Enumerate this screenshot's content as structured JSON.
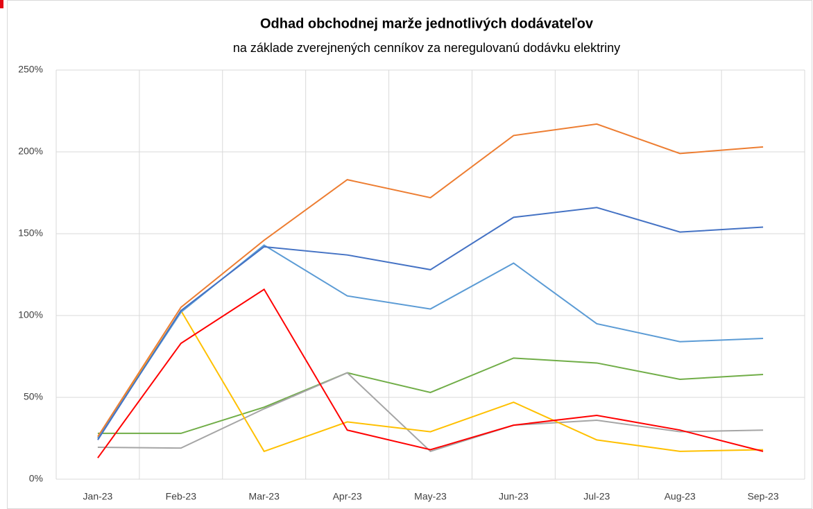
{
  "chart_data": {
    "type": "line",
    "title": "Odhad obchodnej marže jednotlivých dodávateľov",
    "subtitle": "na základe zverejnených cenníkov za neregulovanú dodávku elektriny",
    "categories": [
      "Jan-23",
      "Feb-23",
      "Mar-23",
      "Apr-23",
      "May-23",
      "Jun-23",
      "Jul-23",
      "Aug-23",
      "Sep-23"
    ],
    "series": [
      {
        "color": "#70ad47",
        "values": [
          28,
          28,
          44,
          65,
          53,
          74,
          71,
          61,
          64
        ]
      },
      {
        "color": "#a5a5a5",
        "values": [
          19.5,
          19,
          43,
          65,
          17,
          33,
          36,
          29,
          30
        ]
      },
      {
        "color": "#ffc000",
        "values": [
          25,
          103,
          17,
          35,
          29,
          47,
          24,
          17,
          18
        ]
      },
      {
        "color": "#5b9bd5",
        "values": [
          25,
          102,
          143,
          112,
          104,
          132,
          95,
          84,
          86
        ]
      },
      {
        "color": "#4472c4",
        "values": [
          24,
          103,
          142,
          137,
          128,
          160,
          166,
          151,
          154
        ]
      },
      {
        "color": "#ed7d31",
        "values": [
          26,
          105,
          146,
          183,
          172,
          210,
          217,
          199,
          203
        ]
      },
      {
        "color": "#ff0000",
        "values": [
          13,
          83,
          116,
          30,
          18,
          33,
          39,
          30,
          17
        ]
      }
    ],
    "ylim": [
      0,
      250
    ],
    "yticks": [
      {
        "value": 0,
        "label": "0%"
      },
      {
        "value": 50,
        "label": "50%"
      },
      {
        "value": 100,
        "label": "100%"
      },
      {
        "value": 150,
        "label": "150%"
      },
      {
        "value": 200,
        "label": "200%"
      },
      {
        "value": 250,
        "label": "250%"
      }
    ],
    "grid": true
  }
}
